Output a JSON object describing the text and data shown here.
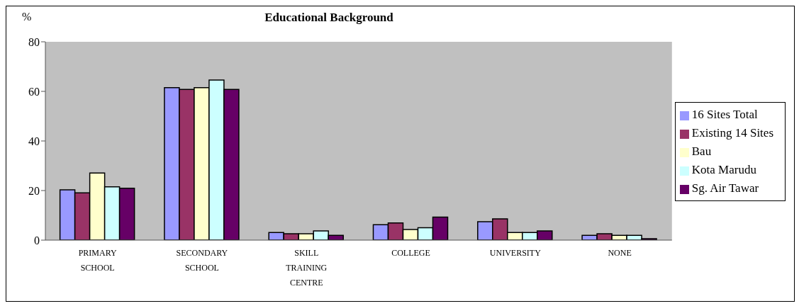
{
  "chart_data": {
    "type": "bar",
    "title": "Educational Background",
    "ylabel": "%",
    "categories": [
      "PRIMARY SCHOOL",
      "SECONDARY SCHOOL",
      "SKILL TRAINING CENTRE",
      "COLLEGE",
      "UNIVERSITY",
      "NONE"
    ],
    "series": [
      {
        "name": "16 Sites Total",
        "color": "#9999ff",
        "values": [
          20.3,
          61.5,
          3.1,
          6.2,
          7.4,
          1.9
        ]
      },
      {
        "name": "Existing 14 Sites",
        "color": "#993366",
        "values": [
          19.1,
          60.8,
          2.6,
          6.9,
          8.6,
          2.6
        ]
      },
      {
        "name": "Bau",
        "color": "#ffffcc",
        "values": [
          27.1,
          61.5,
          2.6,
          4.3,
          3.1,
          1.9
        ]
      },
      {
        "name": "Kota Marudu",
        "color": "#ccffff",
        "values": [
          21.5,
          64.6,
          3.7,
          5.0,
          3.1,
          1.9
        ]
      },
      {
        "name": "Sg. Air Tawar",
        "color": "#660066",
        "values": [
          20.9,
          60.8,
          1.9,
          9.3,
          3.7,
          0.6
        ]
      }
    ],
    "ylim": [
      0,
      80
    ],
    "yticks": [
      0,
      20,
      40,
      60,
      80
    ],
    "grid": false,
    "legend": "right"
  }
}
